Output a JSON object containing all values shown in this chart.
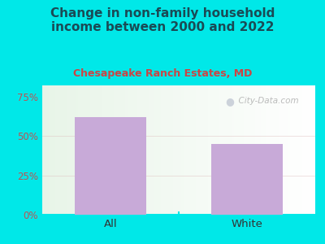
{
  "title": "Change in non-family household\nincome between 2000 and 2022",
  "subtitle": "Chesapeake Ranch Estates, MD",
  "categories": [
    "All",
    "White"
  ],
  "values": [
    62,
    45
  ],
  "bar_color": "#c8aad8",
  "title_color": "#1a4a55",
  "subtitle_color": "#cc4444",
  "outer_bg": "#00e8e8",
  "yticks": [
    0,
    25,
    50,
    75
  ],
  "ytick_labels": [
    "0%",
    "25%",
    "50%",
    "75%"
  ],
  "ytick_color": "#bb5555",
  "xtick_color": "#333333",
  "watermark": "City-Data.com",
  "ylim": [
    0,
    82
  ],
  "title_fontsize": 11,
  "subtitle_fontsize": 9
}
